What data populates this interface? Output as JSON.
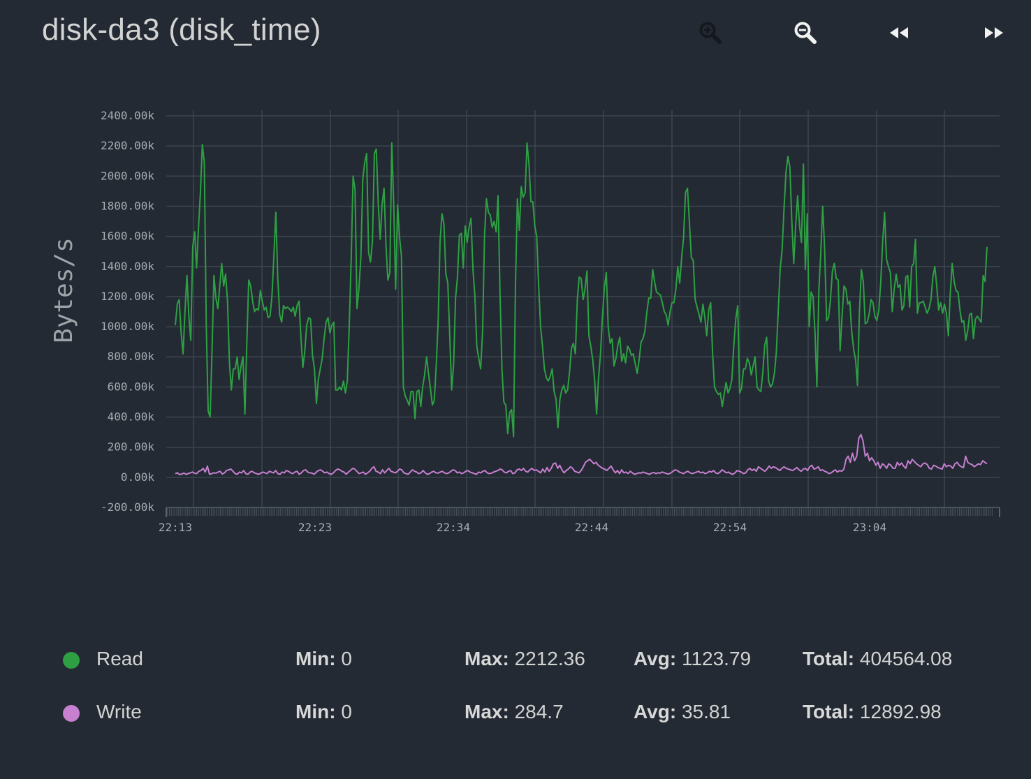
{
  "title": "disk-da3 (disk_time)",
  "toolbar": {
    "buttons": [
      {
        "name": "zoom-in",
        "icon": "zoom-in-icon",
        "enabled": false
      },
      {
        "name": "zoom-out",
        "icon": "zoom-out-icon",
        "enabled": true
      },
      {
        "name": "rewind",
        "icon": "rewind-icon",
        "enabled": true
      },
      {
        "name": "fast-forward",
        "icon": "fast-forward-icon",
        "enabled": true
      }
    ]
  },
  "colors": {
    "background": "#232a33",
    "grid": "#3c444e",
    "read": "#2ea043",
    "write": "#c77fd0"
  },
  "chart_data": {
    "type": "line",
    "ylabel": "Bytes/s",
    "xlabel": "",
    "ylim": [
      -200,
      2400
    ],
    "yticks": [
      "2400.00k",
      "2200.00k",
      "2000.00k",
      "1800.00k",
      "1600.00k",
      "1400.00k",
      "1200.00k",
      "1000.00k",
      "800.00k",
      "600.00k",
      "400.00k",
      "200.00k",
      "0.00k",
      "-200.00k"
    ],
    "ytick_values": [
      2400,
      2200,
      2000,
      1800,
      1600,
      1400,
      1200,
      1000,
      800,
      600,
      400,
      200,
      0,
      -200
    ],
    "xticks": [
      "22:13",
      "22:23",
      "22:34",
      "22:44",
      "22:54",
      "23:04"
    ],
    "grid": true,
    "x_start": "22:13",
    "x_end": "23:13",
    "series": [
      {
        "name": "Read",
        "color": "#2ea043",
        "values": [
          1010,
          1150,
          1180,
          960,
          820,
          1100,
          1340,
          1070,
          910,
          1530,
          1630,
          1390,
          1660,
          1900,
          2210,
          2090,
          1010,
          440,
          400,
          850,
          1340,
          1190,
          1120,
          1270,
          1420,
          1270,
          1350,
          1170,
          760,
          580,
          720,
          720,
          800,
          650,
          740,
          800,
          420,
          900,
          1310,
          1270,
          1170,
          1100,
          1120,
          1110,
          1240,
          1170,
          1110,
          1130,
          1060,
          1070,
          1200,
          1470,
          1760,
          1330,
          1080,
          1030,
          1140,
          1120,
          1130,
          1120,
          1100,
          1130,
          1070,
          1140,
          1170,
          930,
          730,
          840,
          1010,
          1060,
          1050,
          810,
          720,
          490,
          650,
          720,
          790,
          920,
          1030,
          1060,
          960,
          1010,
          1030,
          580,
          580,
          600,
          580,
          640,
          560,
          640,
          1010,
          1450,
          2000,
          1910,
          1120,
          1250,
          1460,
          1980,
          2090,
          2150,
          1490,
          1430,
          1570,
          2150,
          2180,
          1820,
          1580,
          1810,
          1920,
          1540,
          1310,
          1360,
          2220,
          1820,
          1250,
          1810,
          1600,
          1470,
          600,
          540,
          510,
          480,
          570,
          570,
          390,
          570,
          580,
          470,
          600,
          680,
          800,
          690,
          590,
          480,
          510,
          740,
          1040,
          1570,
          1750,
          1680,
          1350,
          1290,
          940,
          580,
          750,
          1190,
          1330,
          1610,
          1620,
          1390,
          1670,
          1560,
          1660,
          1720,
          1380,
          1210,
          870,
          790,
          720,
          970,
          1610,
          1850,
          1760,
          1740,
          1660,
          1700,
          1630,
          1870,
          1230,
          720,
          500,
          480,
          290,
          430,
          450,
          270,
          1260,
          1850,
          1640,
          1930,
          1860,
          1890,
          2220,
          2080,
          1830,
          1830,
          1670,
          1600,
          1280,
          1000,
          870,
          720,
          660,
          640,
          670,
          720,
          570,
          520,
          330,
          520,
          580,
          610,
          560,
          580,
          700,
          860,
          890,
          820,
          1180,
          1330,
          1320,
          1180,
          1250,
          1370,
          940,
          870,
          780,
          640,
          420,
          660,
          820,
          1060,
          1260,
          1360,
          1000,
          890,
          920,
          740,
          790,
          880,
          930,
          770,
          820,
          760,
          870,
          850,
          810,
          820,
          750,
          690,
          780,
          900,
          920,
          970,
          1100,
          1190,
          1190,
          1380,
          1300,
          1230,
          1220,
          1210,
          1160,
          1100,
          1080,
          1010,
          1100,
          1160,
          1160,
          1250,
          1400,
          1290,
          1460,
          1590,
          1890,
          1920,
          1700,
          1460,
          1440,
          1180,
          1130,
          1080,
          1030,
          1150,
          1060,
          940,
          1110,
          1160,
          830,
          600,
          570,
          550,
          560,
          470,
          550,
          630,
          560,
          590,
          650,
          880,
          1050,
          1140,
          560,
          590,
          720,
          720,
          790,
          760,
          680,
          740,
          800,
          600,
          580,
          570,
          700,
          880,
          930,
          640,
          600,
          620,
          690,
          830,
          1110,
          1390,
          1510,
          1790,
          2030,
          2130,
          2060,
          1700,
          1420,
          1670,
          1870,
          1670,
          1560,
          2080,
          1380,
          1750,
          1000,
          1230,
          1200,
          960,
          600,
          1240,
          1500,
          1800,
          1510,
          1040,
          1060,
          1180,
          1370,
          1420,
          1320,
          1310,
          840,
          1070,
          1270,
          1250,
          1150,
          1170,
          970,
          850,
          780,
          610,
          1100,
          1380,
          1300,
          1020,
          1030,
          1080,
          1180,
          1160,
          1070,
          1040,
          1110,
          1290,
          1560,
          1760,
          1450,
          1400,
          1360,
          1100,
          1250,
          1350,
          1260,
          1280,
          1110,
          1140,
          1330,
          1340,
          1130,
          1400,
          1420,
          1580,
          1090,
          1160,
          1160,
          1170,
          1130,
          1090,
          1120,
          1180,
          1330,
          1400,
          1270,
          1110,
          1160,
          1090,
          1150,
          1090,
          940,
          1220,
          1420,
          1300,
          1240,
          1230,
          1110,
          1030,
          1040,
          910,
          970,
          1080,
          1090,
          920,
          1050,
          1070,
          1050,
          1030,
          1340,
          1300,
          1530
        ]
      },
      {
        "name": "Write",
        "color": "#c77fd0",
        "values": [
          25,
          30,
          18,
          22,
          28,
          20,
          25,
          30,
          35,
          28,
          25,
          40,
          45,
          60,
          35,
          75,
          20,
          25,
          30,
          28,
          35,
          40,
          22,
          30,
          45,
          50,
          55,
          40,
          25,
          20,
          35,
          30,
          45,
          25,
          20,
          35,
          40,
          30,
          25,
          20,
          28,
          35,
          30,
          25,
          40,
          35,
          30,
          45,
          25,
          20,
          35,
          30,
          45,
          40,
          30,
          25,
          35,
          40,
          20,
          30,
          45,
          50,
          35,
          30,
          28,
          20,
          35,
          45,
          50,
          40,
          30,
          35,
          25,
          20,
          30,
          45,
          55,
          50,
          40,
          35,
          20,
          35,
          45,
          60,
          55,
          40,
          25,
          30,
          35,
          20,
          30,
          40,
          60,
          70,
          40,
          35,
          25,
          50,
          30,
          45,
          60,
          40,
          35,
          30,
          40,
          55,
          50,
          30,
          25,
          20,
          35,
          50,
          40,
          35,
          25,
          30,
          45,
          30,
          20,
          25,
          35,
          40,
          30,
          28,
          35,
          40,
          30,
          25,
          30,
          40,
          50,
          45,
          30,
          35,
          25,
          30,
          40,
          45,
          35,
          30,
          25,
          20,
          35,
          30,
          40,
          45,
          30,
          25,
          28,
          35,
          40,
          45,
          55,
          50,
          35,
          30,
          40,
          45,
          25,
          30,
          50,
          55,
          45,
          60,
          40,
          35,
          50,
          60,
          45,
          50,
          40,
          30,
          55,
          35,
          65,
          40,
          60,
          90,
          95,
          60,
          80,
          50,
          30,
          45,
          55,
          70,
          60,
          40,
          35,
          30,
          45,
          70,
          100,
          110,
          120,
          105,
          90,
          100,
          80,
          70,
          60,
          55,
          45,
          60,
          75,
          50,
          30,
          45,
          25,
          50,
          30,
          35,
          25,
          40,
          30,
          20,
          25,
          30,
          28,
          35,
          30,
          25,
          20,
          28,
          32,
          25,
          30,
          28,
          35,
          30,
          25,
          22,
          30,
          40,
          50,
          45,
          35,
          30,
          25,
          35,
          40,
          30,
          25,
          30,
          35,
          40,
          30,
          35,
          25,
          30,
          40,
          35,
          45,
          30,
          25,
          35,
          50,
          40,
          30,
          35,
          25,
          20,
          30,
          45,
          40,
          35,
          25,
          30,
          50,
          60,
          45,
          55,
          40,
          70,
          60,
          50,
          40,
          55,
          75,
          60,
          70,
          65,
          55,
          45,
          60,
          70,
          60,
          55,
          50,
          45,
          55,
          65,
          50,
          40,
          55,
          60,
          45,
          70,
          80,
          55,
          60,
          70,
          45,
          50,
          40,
          35,
          25,
          30,
          40,
          50,
          35,
          45,
          40,
          55,
          120,
          140,
          100,
          160,
          110,
          140,
          260,
          284,
          240,
          140,
          160,
          110,
          130,
          110,
          80,
          100,
          60,
          90,
          80,
          60,
          90,
          80,
          60,
          60,
          100,
          80,
          95,
          75,
          60,
          110,
          90,
          120,
          105,
          90,
          80,
          70,
          90,
          95,
          85,
          60,
          55,
          80,
          75,
          65,
          60,
          55,
          90,
          70,
          80,
          75,
          60,
          90,
          100,
          80,
          70,
          65,
          140,
          100,
          90,
          85,
          70,
          80,
          90,
          85,
          110,
          100,
          90
        ]
      }
    ]
  },
  "legend": [
    {
      "name": "Read",
      "color": "#2ea043",
      "min_label": "Min:",
      "min": "0",
      "max_label": "Max:",
      "max": "2212.36",
      "avg_label": "Avg:",
      "avg": "1123.79",
      "total_label": "Total:",
      "total": "404564.08"
    },
    {
      "name": "Write",
      "color": "#c77fd0",
      "min_label": "Min:",
      "min": "0",
      "max_label": "Max:",
      "max": "284.7",
      "avg_label": "Avg:",
      "avg": "35.81",
      "total_label": "Total:",
      "total": "12892.98"
    }
  ]
}
